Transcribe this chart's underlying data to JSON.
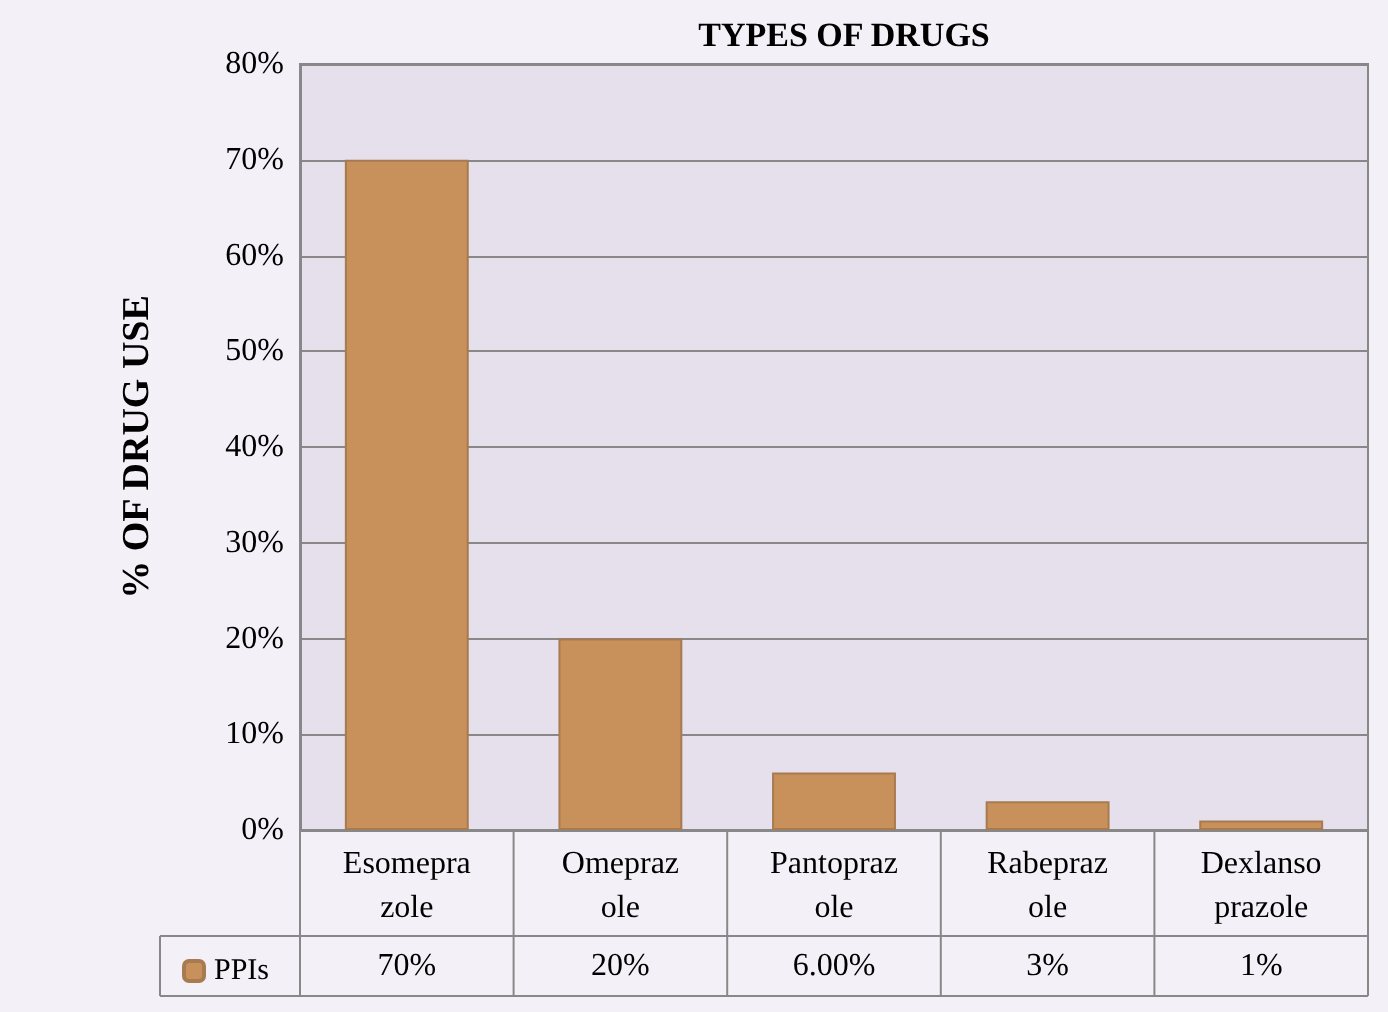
{
  "chart_data": {
    "type": "bar",
    "title": "TYPES OF DRUGS",
    "ylabel": "% OF DRUG USE",
    "categories": [
      "Esomeprazole",
      "Omeprazole",
      "Pantoprazole",
      "Rabeprazole",
      "Dexlansoprazole"
    ],
    "series": [
      {
        "name": "PPIs",
        "color": "#c8915c",
        "values": [
          70,
          20,
          6,
          3,
          1
        ],
        "value_labels": [
          "70%",
          "20%",
          "6.00%",
          "3%",
          "1%"
        ]
      }
    ],
    "ylim": [
      0,
      80
    ],
    "yticks": [
      {
        "value": 0,
        "label": "0%"
      },
      {
        "value": 10,
        "label": "10%"
      },
      {
        "value": 20,
        "label": "20%"
      },
      {
        "value": 30,
        "label": "30%"
      },
      {
        "value": 40,
        "label": "40%"
      },
      {
        "value": 50,
        "label": "50%"
      },
      {
        "value": 60,
        "label": "60%"
      },
      {
        "value": 70,
        "label": "70%"
      },
      {
        "value": 80,
        "label": "80%"
      }
    ],
    "grid": "y",
    "legend": "bottom left"
  }
}
